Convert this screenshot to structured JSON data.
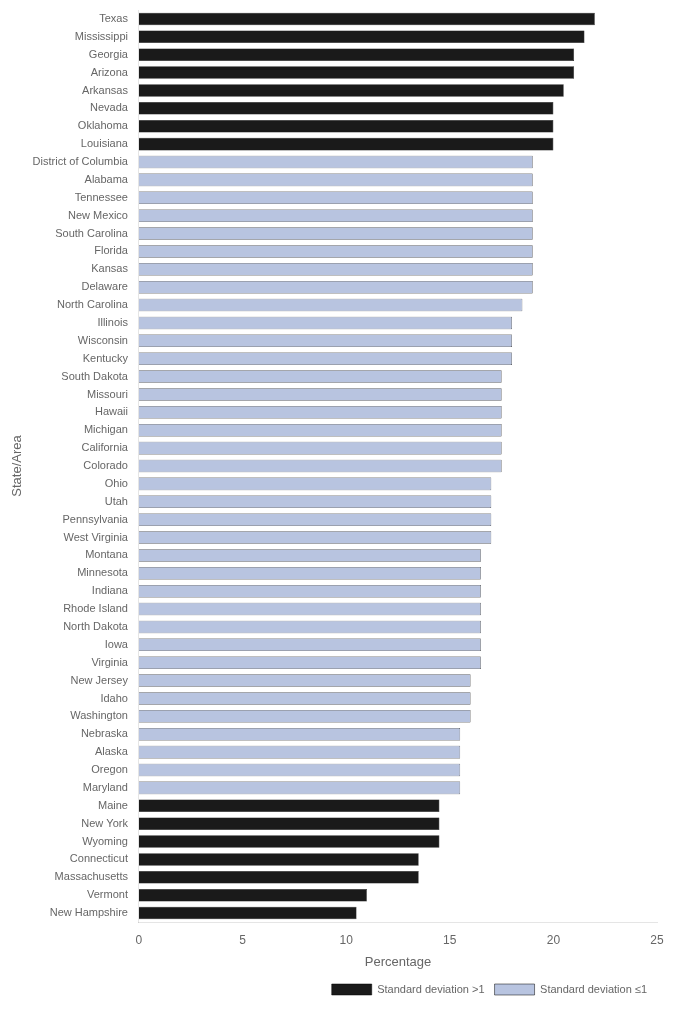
{
  "chart_data": {
    "type": "bar",
    "orientation": "horizontal",
    "x_label": "Percentage",
    "y_label": "State/Area",
    "categories": [
      "Texas",
      "Mississippi",
      "Georgia",
      "Arizona",
      "Arkansas",
      "Nevada",
      "Oklahoma",
      "Louisiana",
      "District of Columbia",
      "Alabama",
      "Tennessee",
      "New Mexico",
      "South Carolina",
      "Florida",
      "Kansas",
      "Delaware",
      "North Carolina",
      "Illinois",
      "Wisconsin",
      "Kentucky",
      "South Dakota",
      "Missouri",
      "Hawaii",
      "Michigan",
      "California",
      "Colorado",
      "Ohio",
      "Utah",
      "Pennsylvania",
      "West Virginia",
      "Montana",
      "Minnesota",
      "Indiana",
      "Rhode Island",
      "North Dakota",
      "Iowa",
      "Virginia",
      "New Jersey",
      "Idaho",
      "Washington",
      "Nebraska",
      "Alaska",
      "Oregon",
      "Maryland",
      "Maine",
      "New York",
      "Wyoming",
      "Connecticut",
      "Massachusetts",
      "Vermont",
      "New Hampshire"
    ],
    "series": [
      {
        "name": "Standard deviation >1",
        "color": "#1a1a1a",
        "values": [
          22.0,
          21.5,
          21.0,
          21.0,
          20.5,
          20.0,
          20.0,
          20.0,
          null,
          null,
          null,
          null,
          null,
          null,
          null,
          null,
          null,
          null,
          null,
          null,
          null,
          null,
          null,
          null,
          null,
          null,
          null,
          null,
          null,
          null,
          null,
          null,
          null,
          null,
          null,
          null,
          null,
          null,
          null,
          null,
          null,
          null,
          null,
          null,
          14.5,
          14.5,
          14.5,
          13.5,
          13.5,
          11.0,
          10.5
        ]
      },
      {
        "name": "Standard deviation ≤1",
        "color": "#b8c4e0",
        "values": [
          null,
          null,
          null,
          null,
          null,
          null,
          null,
          null,
          19.0,
          19.0,
          19.0,
          19.0,
          19.0,
          19.0,
          19.0,
          19.0,
          18.5,
          18.0,
          18.0,
          18.0,
          17.5,
          17.5,
          17.5,
          17.5,
          17.5,
          17.5,
          17.0,
          17.0,
          17.0,
          17.0,
          16.5,
          16.5,
          16.5,
          16.5,
          16.5,
          16.5,
          16.5,
          16.0,
          16.0,
          16.0,
          15.5,
          15.5,
          15.5,
          15.5,
          null,
          null,
          null,
          null,
          null,
          null,
          null
        ]
      }
    ],
    "xlim": [
      0,
      25
    ],
    "xticks": [
      0,
      5,
      10,
      15,
      20,
      25
    ],
    "grid": false,
    "legend": "lower right"
  }
}
